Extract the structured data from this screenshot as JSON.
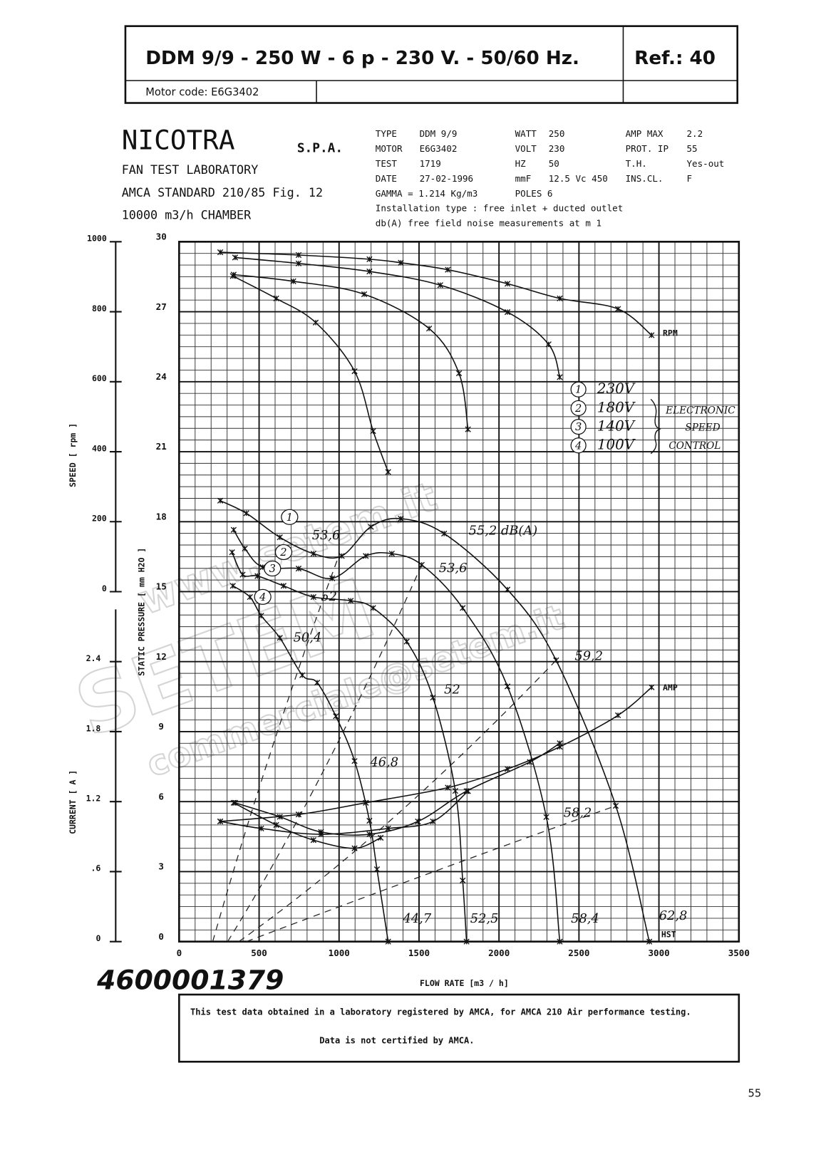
{
  "header": {
    "title": "DDM  9/9 - 250 W - 6 p - 230 V. - 50/60 Hz.",
    "ref": "Ref.:  40",
    "motor_code": "Motor code: E6G3402"
  },
  "lab": {
    "name": "NICOTRA",
    "suffix": "S.P.A.",
    "lines": [
      "FAN TEST LABORATORY",
      "AMCA STANDARD 210/85 Fig. 12",
      "10000 m3/h  CHAMBER"
    ]
  },
  "specs": {
    "rows": [
      [
        "TYPE",
        "DDM 9/9",
        "WATT",
        "250",
        "AMP MAX",
        "2.2"
      ],
      [
        "MOTOR",
        "E6G3402",
        "VOLT",
        "230",
        "PROT.  IP",
        "55"
      ],
      [
        "TEST",
        "1719",
        "HZ",
        "50",
        "T.H.",
        "Yes-out"
      ],
      [
        "DATE",
        "27-02-1996",
        "mmF",
        "12.5  Vc 450",
        "INS.CL.",
        "F"
      ],
      [
        "GAMMA = 1.214 Kg/m3",
        "POLES 6"
      ]
    ],
    "installation": "Installation type :  free inlet + ducted outlet",
    "noise": "db(A)  free field noise measurements at m  1"
  },
  "watermark": [
    "www.setem.it",
    "SETEM",
    "commerciale@setem.it"
  ],
  "chart_data": {
    "type": "line",
    "xlabel": "FLOW RATE  [m3 / h]",
    "ylabel": "STATIC PRESSURE  [ mm H2O ]",
    "y2label": "SPEED   [ rpm ]",
    "y3label": "CURRENT   [ A ]",
    "xlim": [
      0,
      3500
    ],
    "xticks": [
      0,
      500,
      1000,
      1500,
      2000,
      2500,
      3000,
      3500
    ],
    "ylim": [
      0,
      30
    ],
    "yticks": [
      0,
      3,
      6,
      9,
      12,
      15,
      18,
      21,
      24,
      27,
      30
    ],
    "y2lim": [
      -1000,
      1000
    ],
    "y2ticks": [
      0,
      200,
      400,
      600,
      800,
      1000
    ],
    "y3lim": [
      0,
      6
    ],
    "y3ticks": [
      0,
      {
        "value": 0.6,
        "label": ".6"
      },
      1.2,
      1.8,
      2.4
    ],
    "grid": true,
    "legend": [
      {
        "number": "1",
        "label": "230V"
      },
      {
        "number": "2",
        "label": "180V"
      },
      {
        "number": "3",
        "label": "140V"
      },
      {
        "number": "4",
        "label": "100V"
      }
    ],
    "legend_note": [
      "ELECTRONIC",
      "SPEED",
      "CONTROL"
    ],
    "series": [
      {
        "color": "#111",
        "axis": "y2",
        "x": [
          257,
          747,
          1190,
          1386,
          1680,
          2053,
          2380,
          2744,
          2954
        ],
        "values": [
          970,
          962,
          950,
          940,
          920,
          880,
          838,
          808,
          733
        ]
      },
      {
        "color": "#111",
        "axis": "y2",
        "x": [
          350,
          747,
          1190,
          1633,
          2053,
          2310,
          2380
        ],
        "values": [
          955,
          938,
          915,
          876,
          799,
          707,
          613
        ]
      },
      {
        "color": "#111",
        "axis": "y2",
        "x": [
          341,
          714,
          1157,
          1563,
          1750,
          1806
        ],
        "values": [
          906,
          887,
          850,
          752,
          624,
          464
        ]
      },
      {
        "color": "#111",
        "axis": "y2",
        "x": [
          336,
          607,
          854,
          1097,
          1213,
          1307
        ],
        "values": [
          902,
          838,
          769,
          630,
          459,
          342
        ]
      },
      {
        "color": "#111",
        "x": [
          257,
          420,
          630,
          840,
          1017,
          1199,
          1386,
          1657,
          2053,
          2357,
          2730,
          2940
        ],
        "values": [
          18.9,
          18.36,
          17.33,
          16.63,
          16.53,
          17.78,
          18.13,
          17.49,
          15.09,
          12.06,
          5.82,
          0
        ]
      },
      {
        "color": "#111",
        "x": [
          341,
          411,
          523,
          747,
          957,
          1167,
          1330,
          1517,
          1773,
          2053,
          2296,
          2380
        ],
        "values": [
          17.65,
          16.85,
          16.05,
          15.99,
          15.57,
          16.53,
          16.63,
          16.15,
          14.3,
          10.94,
          5.34,
          0
        ]
      },
      {
        "color": "#111",
        "x": [
          331,
          397,
          490,
          653,
          840,
          1073,
          1213,
          1423,
          1587,
          1727,
          1773,
          1797
        ],
        "values": [
          16.69,
          15.73,
          15.67,
          15.25,
          14.77,
          14.61,
          14.3,
          12.86,
          10.46,
          6.46,
          2.62,
          0
        ]
      },
      {
        "color": "#111",
        "x": [
          336,
          443,
          513,
          630,
          770,
          863,
          980,
          1097,
          1190,
          1237,
          1307
        ],
        "values": [
          15.25,
          14.77,
          13.97,
          13.02,
          11.42,
          11.1,
          9.66,
          7.74,
          5.18,
          3.1,
          0
        ]
      },
      {
        "color": "#111",
        "axis": "y3",
        "x": [
          257,
          747,
          1167,
          1680,
          2053,
          2380,
          2744,
          2954
        ],
        "values": [
          1.03,
          1.09,
          1.19,
          1.32,
          1.48,
          1.67,
          1.94,
          2.18
        ]
      },
      {
        "color": "#111",
        "axis": "y3",
        "x": [
          350,
          630,
          887,
          1190,
          1493,
          1797,
          2193,
          2380
        ],
        "values": [
          1.19,
          1.07,
          0.94,
          0.92,
          1.03,
          1.29,
          1.54,
          1.7
        ]
      },
      {
        "color": "#111",
        "axis": "y3",
        "x": [
          257,
          513,
          887,
          1307,
          1587,
          1806
        ],
        "values": [
          1.03,
          0.97,
          0.92,
          0.97,
          1.03,
          1.29
        ]
      },
      {
        "color": "#111",
        "axis": "y3",
        "x": [
          341,
          607,
          840,
          1097,
          1260
        ],
        "values": [
          1.19,
          1.0,
          0.87,
          0.8,
          0.89
        ]
      }
    ],
    "annotations": [
      "53,6",
      "55,2  dB(A)",
      "53,6",
      "52",
      "50,4",
      "59,2",
      "52",
      "46,8",
      "58,2",
      "44,7",
      "52,5",
      "58,4",
      "62,8",
      "RPM",
      "AMP",
      "HST"
    ]
  },
  "document_number": "4600001379",
  "notice": [
    "This test data obtained in a laboratory registered by AMCA, for AMCA 210 Air performance testing.",
    "Data is not certified by AMCA."
  ],
  "page_number": "55"
}
